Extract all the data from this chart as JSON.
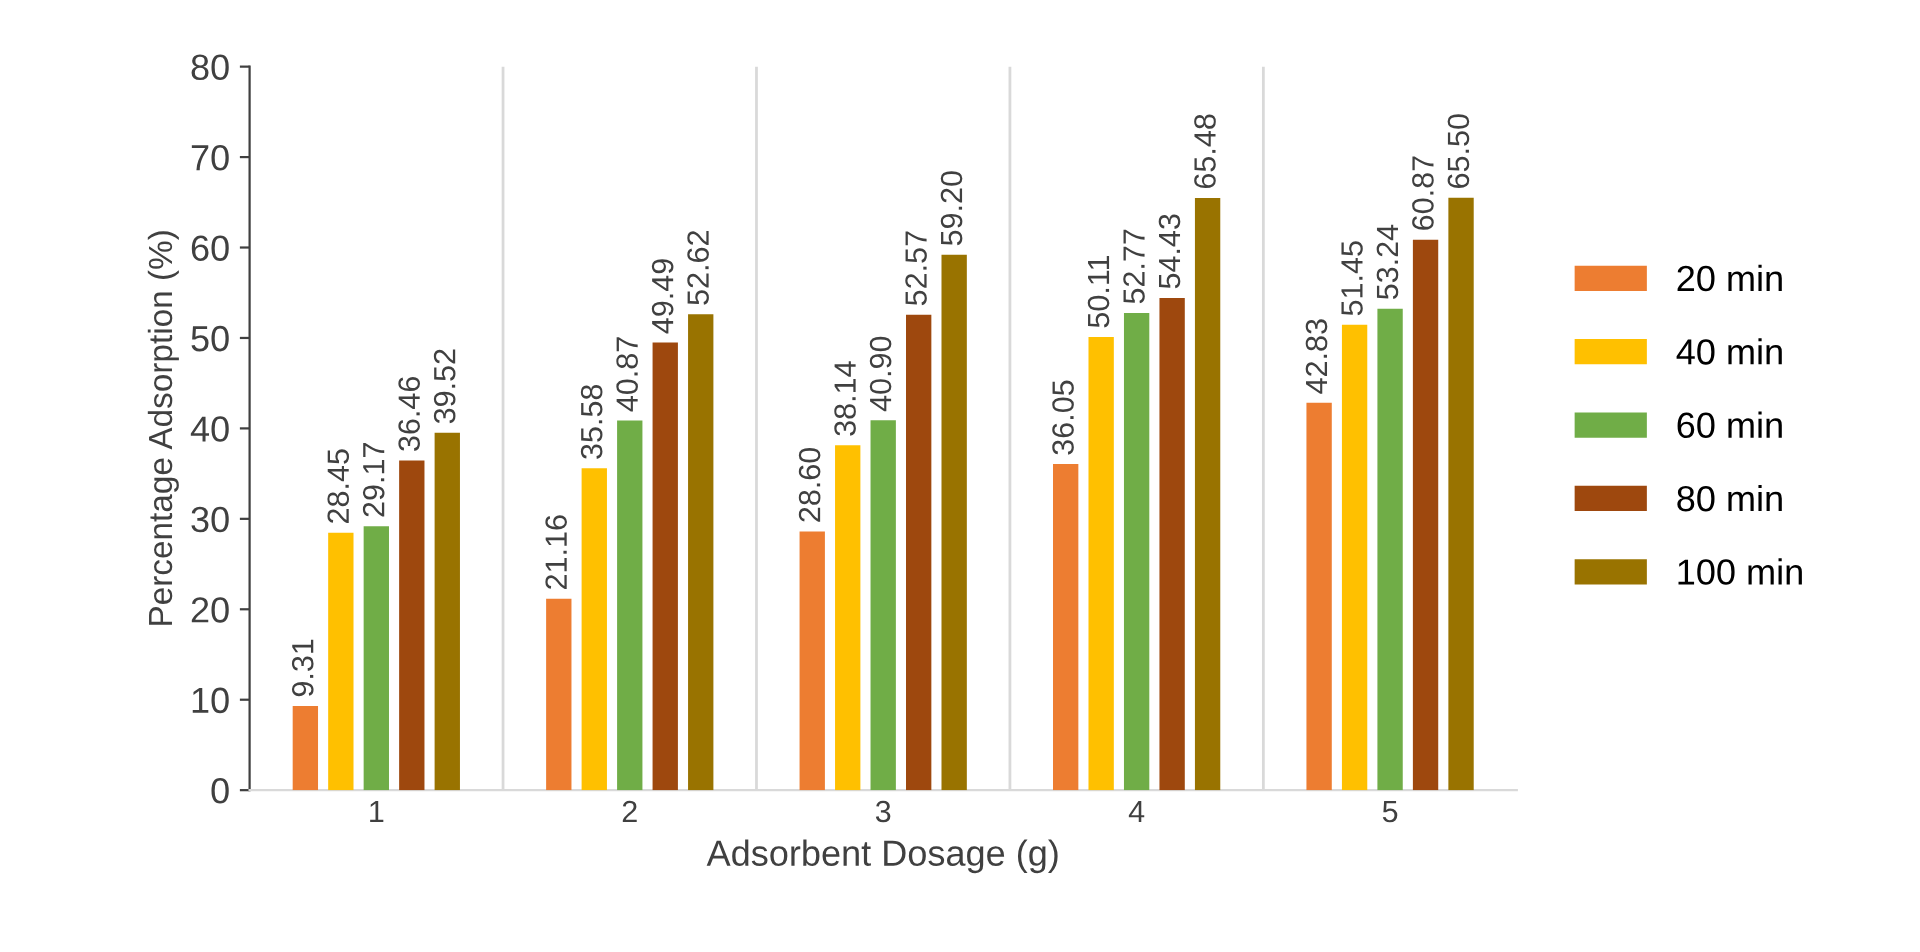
{
  "chart_data": {
    "type": "bar",
    "xlabel": "Adsorbent Dosage (g)",
    "ylabel": "Percentage Adsorption (%)",
    "categories": [
      "1",
      "2",
      "3",
      "4",
      "5"
    ],
    "series": [
      {
        "name": "20 min",
        "color": "#ed7d31",
        "values": [
          9.31,
          21.16,
          28.6,
          36.05,
          42.83
        ],
        "value_labels": [
          "9.31",
          "21.16",
          "28.60",
          "36.05",
          "42.83"
        ]
      },
      {
        "name": "40 min",
        "color": "#ffc000",
        "values": [
          28.45,
          35.58,
          38.14,
          50.11,
          51.45
        ],
        "value_labels": [
          "28.45",
          "35.58",
          "38.14",
          "50.11",
          "51.45"
        ]
      },
      {
        "name": "60 min",
        "color": "#70ad47",
        "values": [
          29.17,
          40.87,
          40.9,
          52.77,
          53.24
        ],
        "value_labels": [
          "29.17",
          "40.87",
          "40.90",
          "52.77",
          "53.24"
        ]
      },
      {
        "name": "80 min",
        "color": "#9e480e",
        "values": [
          36.46,
          49.49,
          52.57,
          54.43,
          60.87
        ],
        "value_labels": [
          "36.46",
          "49.49",
          "52.57",
          "54.43",
          "60.87"
        ]
      },
      {
        "name": "100 min",
        "color": "#997300",
        "values": [
          39.52,
          52.62,
          59.2,
          65.48,
          65.5
        ],
        "value_labels": [
          "39.52",
          "52.62",
          "59.20",
          "65.48",
          "65.50"
        ]
      }
    ],
    "ylim": [
      0,
      80
    ],
    "yticks": [
      0,
      10,
      20,
      30,
      40,
      50,
      60,
      70,
      80
    ],
    "grid": "x",
    "legend": "right"
  }
}
